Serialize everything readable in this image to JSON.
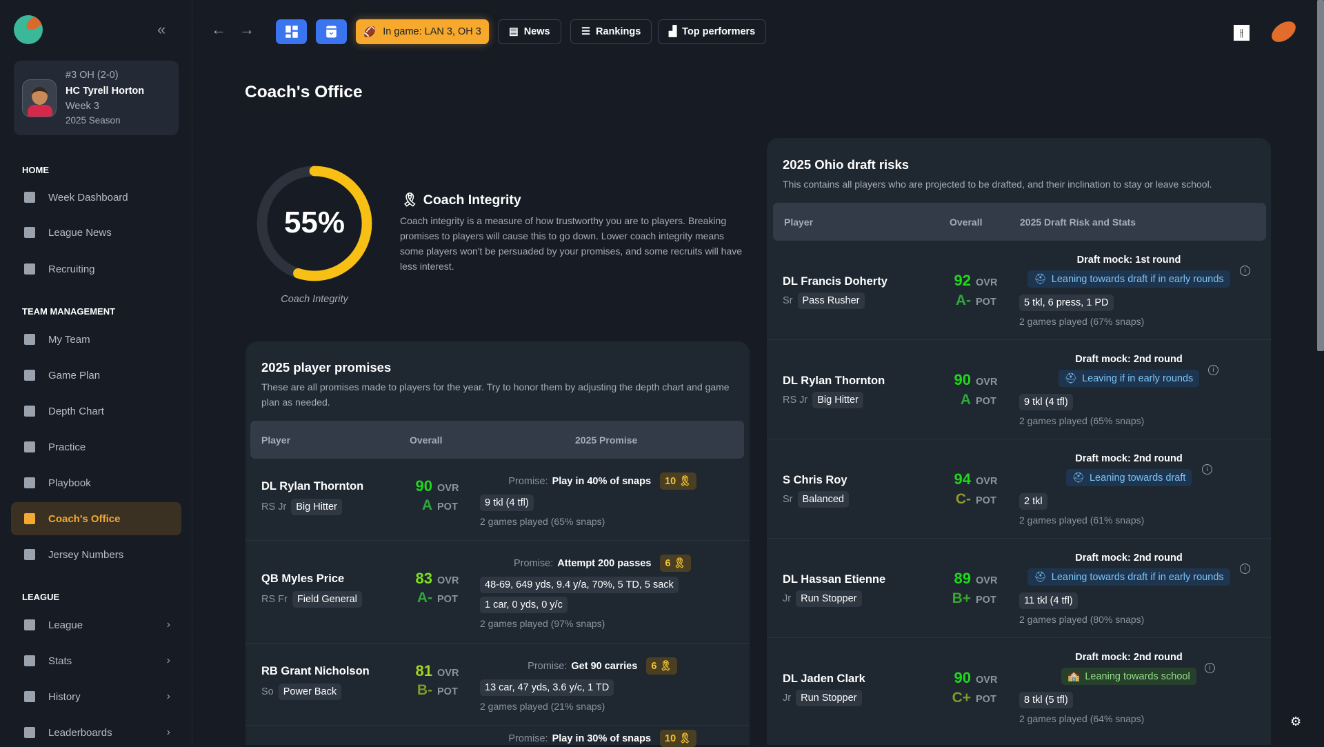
{
  "sidebar": {
    "coach": {
      "rank": "#3 OH (2-0)",
      "name": "HC Tyrell Horton",
      "week": "Week 3",
      "season": "2025 Season"
    },
    "sections": {
      "home": "HOME",
      "team": "TEAM MANAGEMENT",
      "league": "LEAGUE"
    },
    "items": [
      {
        "label": "Week Dashboard",
        "icon": "dashboard-icon"
      },
      {
        "label": "League News",
        "icon": "newspaper-icon"
      },
      {
        "label": "Recruiting",
        "icon": "recruiting-icon"
      },
      {
        "label": "My Team",
        "icon": "team-icon"
      },
      {
        "label": "Game Plan",
        "icon": "game-plan-icon"
      },
      {
        "label": "Depth Chart",
        "icon": "depth-chart-icon"
      },
      {
        "label": "Practice",
        "icon": "practice-icon"
      },
      {
        "label": "Playbook",
        "icon": "playbook-icon"
      },
      {
        "label": "Coach's Office",
        "icon": "desk-lamp-icon",
        "active": true
      },
      {
        "label": "Jersey Numbers",
        "icon": "jersey-icon"
      },
      {
        "label": "League",
        "icon": "layers-icon"
      },
      {
        "label": "Stats",
        "icon": "database-icon"
      },
      {
        "label": "History",
        "icon": "history-icon"
      },
      {
        "label": "Leaderboards",
        "icon": "podium-icon"
      }
    ]
  },
  "topbar": {
    "in_game": "In game: LAN 3, OH 3",
    "news": "News",
    "rankings": "Rankings",
    "top_performers": "Top performers"
  },
  "page": {
    "title": "Coach's Office"
  },
  "integrity": {
    "value_percent": 55,
    "value_label": "55%",
    "caption": "Coach Integrity",
    "title": "Coach Integrity",
    "description": "Coach integrity is a measure of how trustworthy you are to players. Breaking promises to players will cause this to go down. Lower coach integrity means some players won't be persuaded by your promises, and some recruits will have less interest.",
    "color": "#f8c014"
  },
  "promises": {
    "title": "2025 player promises",
    "description": "These are all promises made to players for the year. Try to honor them by adjusting the depth chart and game plan as needed.",
    "columns": [
      "Player",
      "Overall",
      "2025 Promise"
    ],
    "promise_label": "Promise:",
    "ovr_label": "OVR",
    "pot_label": "POT",
    "rows": [
      {
        "name": "DL Rylan Thornton",
        "cls": "RS Jr",
        "archetype": "Big Hitter",
        "ovr": "90",
        "pot": "A",
        "promise": "Play in 40% of snaps",
        "reward": "10",
        "stats": [
          "9 tkl (4 tfl)"
        ],
        "games": "2 games played (65% snaps)"
      },
      {
        "name": "QB Myles Price",
        "cls": "RS Fr",
        "archetype": "Field General",
        "ovr": "83",
        "pot": "A-",
        "promise": "Attempt 200 passes",
        "reward": "6",
        "stats": [
          "48-69, 649 yds, 9.4 y/a, 70%, 5 TD, 5 sack",
          "1 car, 0 yds, 0 y/c"
        ],
        "games": "2 games played (97% snaps)"
      },
      {
        "name": "RB Grant Nicholson",
        "cls": "So",
        "archetype": "Power Back",
        "ovr": "81",
        "pot": "B-",
        "promise": "Get 90 carries",
        "reward": "6",
        "stats": [
          "13 car, 47 yds, 3.6 y/c, 1 TD"
        ],
        "games": "2 games played (21% snaps)"
      },
      {
        "promise": "Play in 30% of snaps",
        "reward": "10"
      }
    ]
  },
  "draft": {
    "title": "2025 Ohio draft risks",
    "description": "This contains all players who are projected to be drafted, and their inclination to stay or leave school.",
    "columns": [
      "Player",
      "Overall",
      "2025 Draft Risk and Stats"
    ],
    "rows": [
      {
        "name": "DL Francis Doherty",
        "cls": "Sr",
        "archetype": "Pass Rusher",
        "ovr": "92",
        "pot": "A-",
        "mock": "Draft mock: 1st round",
        "stance": "Leaning towards draft if in early rounds",
        "stance_type": "draft",
        "stats": "5 tkl, 6 press, 1 PD",
        "games": "2 games played (67% snaps)"
      },
      {
        "name": "DL Rylan Thornton",
        "cls": "RS Jr",
        "archetype": "Big Hitter",
        "ovr": "90",
        "pot": "A",
        "mock": "Draft mock: 2nd round",
        "stance": "Leaving if in early rounds",
        "stance_type": "draft",
        "stats": "9 tkl (4 tfl)",
        "games": "2 games played (65% snaps)"
      },
      {
        "name": "S Chris Roy",
        "cls": "Sr",
        "archetype": "Balanced",
        "ovr": "94",
        "pot": "C-",
        "mock": "Draft mock: 2nd round",
        "stance": "Leaning towards draft",
        "stance_type": "draft",
        "stats": "2 tkl",
        "games": "2 games played (61% snaps)"
      },
      {
        "name": "DL Hassan Etienne",
        "cls": "Jr",
        "archetype": "Run Stopper",
        "ovr": "89",
        "pot": "B+",
        "mock": "Draft mock: 2nd round",
        "stance": "Leaning towards draft if in early rounds",
        "stance_type": "draft",
        "stats": "11 tkl (4 tfl)",
        "games": "2 games played (80% snaps)"
      },
      {
        "name": "DL Jaden Clark",
        "cls": "Jr",
        "archetype": "Run Stopper",
        "ovr": "90",
        "pot": "C+",
        "mock": "Draft mock: 2nd round",
        "stance": "Leaning towards school",
        "stance_type": "school",
        "stats": "8 tkl (5 tfl)",
        "games": "2 games played (64% snaps)"
      }
    ]
  },
  "colors": {
    "accent": "#f6a92c",
    "primary": "#3a74ef",
    "background": "#161b24",
    "card": "#1f2731"
  }
}
